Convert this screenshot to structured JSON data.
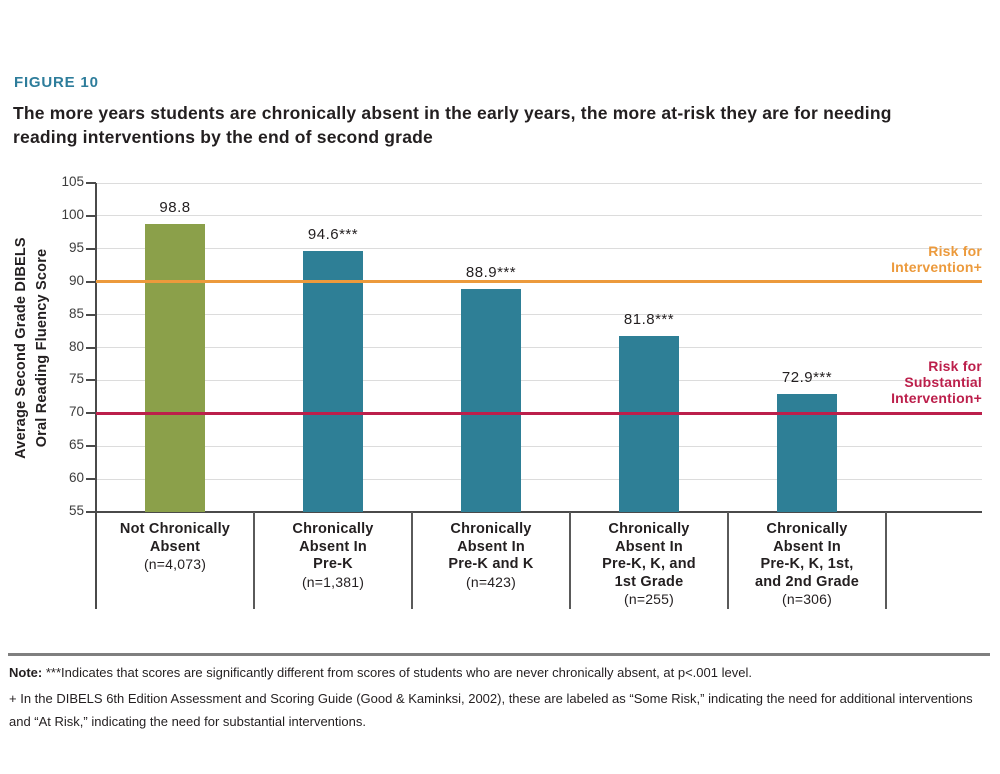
{
  "figure_label": "FIGURE 10",
  "title": {
    "line1": "The more years students are chronically absent in the early years, the more at-risk they are for needing",
    "line2": "reading interventions by the end of second grade"
  },
  "chart_data": {
    "type": "bar",
    "title": "The more years students are chronically absent in the early years, the more at-risk they are for needing reading interventions by the end of second grade",
    "ylabel_lines": [
      "Average Second Grade DIBELS",
      "Oral Reading Fluency Score"
    ],
    "ylim": [
      55,
      105
    ],
    "yticks": [
      105,
      100,
      95,
      90,
      85,
      80,
      75,
      70,
      65,
      60,
      55
    ],
    "grid": true,
    "legend_position": "none",
    "categories": [
      {
        "lines": [
          "Not Chronically",
          "Absent"
        ],
        "n": "(n=4,073)"
      },
      {
        "lines": [
          "Chronically",
          "Absent In",
          "Pre-K"
        ],
        "n": "(n=1,381)"
      },
      {
        "lines": [
          "Chronically",
          "Absent In",
          "Pre-K and K"
        ],
        "n": "(n=423)"
      },
      {
        "lines": [
          "Chronically",
          "Absent In",
          "Pre-K, K, and",
          "1st Grade"
        ],
        "n": "(n=255)"
      },
      {
        "lines": [
          "Chronically",
          "Absent In",
          "Pre-K, K, 1st,",
          "and 2nd Grade"
        ],
        "n": "(n=306)"
      }
    ],
    "values": [
      98.8,
      94.6,
      88.9,
      81.8,
      72.9
    ],
    "value_labels": [
      "98.8",
      "94.6***",
      "88.9***",
      "81.8***",
      "72.9***"
    ],
    "bar_colors": [
      "#8BA04A",
      "#2E7F96",
      "#2E7F96",
      "#2E7F96",
      "#2E7F96"
    ],
    "reference_lines": [
      {
        "value": 90,
        "color": "#EC9A3C",
        "label_lines": [
          "Risk for",
          "Intervention+"
        ]
      },
      {
        "value": 70,
        "color": "#BC1F4B",
        "label_lines": [
          "Risk for",
          "Substantial",
          "Intervention+"
        ]
      }
    ]
  },
  "notes": {
    "note1_bold": "Note:",
    "note1_rest": " ***Indicates that scores are significantly different from scores of students who are never chronically absent, at p<.001 level.",
    "note2_line1": "+ In the DIBELS 6th Edition Assessment and Scoring Guide (Good & Kaminksi, 2002), these are labeled as “Some Risk,” indicating the need for additional interventions",
    "note2_line2": "and “At Risk,” indicating the need for substantial interventions."
  },
  "colors": {
    "figure_label": "#2E7D9B",
    "text": "#231F20",
    "axis": "#4A4A4A",
    "divider": "#5A5A5A",
    "gridline": "#DCDCDC",
    "tick_label": "#3C3C3C",
    "bar_green": "#8BA04A",
    "bar_teal": "#2E7F96",
    "risk_orange": "#EC9A3C",
    "risk_crimson": "#BC1F4B"
  }
}
